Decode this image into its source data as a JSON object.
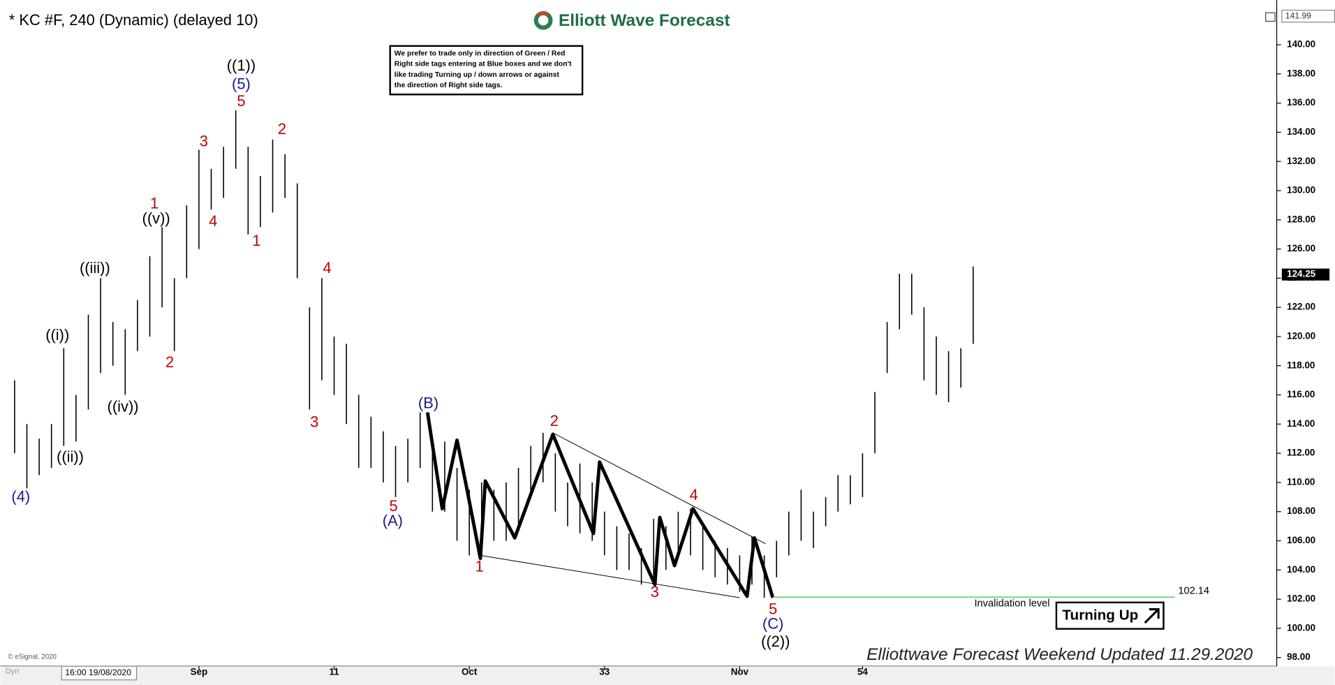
{
  "chart_data": {
    "type": "ohlc",
    "title": "* KC #F, 240 (Dynamic) (delayed 10)",
    "logo": "Elliott Wave Forecast",
    "note": [
      "We prefer to trade only in direction of Green / Red",
      "Right side tags entering at Blue boxes and we don't",
      "like trading Turning up / down arrows or against",
      "the direction of Right side tags."
    ],
    "footer": "Elliottwave Forecast Weekend Updated 11.29.2020",
    "badge": "Turning Up",
    "copyright": "© eSignal, 2020",
    "start_label": "16:00 19/08/2020",
    "corner_label": "Dyn",
    "top_price": "141.99",
    "last_price": {
      "value": 124.25,
      "label": "124.25"
    },
    "bar_color": "#000000",
    "x": [
      -15,
      -14,
      -13,
      -12,
      -11,
      -10,
      -9,
      -8,
      -7,
      -6,
      -5,
      -4,
      -3,
      -2,
      -1,
      0,
      1,
      2,
      3,
      4,
      5,
      6,
      7,
      8,
      9,
      10,
      11,
      12,
      13,
      14,
      15,
      16,
      17,
      18,
      19,
      20,
      21,
      22,
      23,
      24,
      25,
      26,
      27,
      28,
      29,
      30,
      31,
      32,
      33,
      34,
      35,
      36,
      37,
      38,
      39,
      40,
      41,
      42,
      43,
      44,
      45,
      46,
      47,
      48,
      49,
      50,
      51,
      52,
      53,
      54,
      55,
      56,
      57,
      58,
      59,
      60,
      61,
      62,
      63
    ],
    "low": [
      112,
      109.6,
      110.5,
      111,
      112.5,
      112.8,
      115,
      117.5,
      118,
      116,
      119,
      120,
      122,
      119,
      124,
      126,
      128.7,
      129.5,
      131.5,
      127,
      127.5,
      128.5,
      129.5,
      124,
      115,
      117,
      116,
      114,
      111,
      111,
      110,
      109,
      110,
      111,
      108,
      108,
      106,
      105,
      104.8,
      106,
      106,
      107,
      109,
      110,
      108,
      107,
      106.5,
      106,
      105,
      104,
      104,
      103,
      103,
      104,
      105,
      105,
      104,
      103.5,
      103,
      102.5,
      103,
      102.1,
      103.5,
      105,
      106,
      105.5,
      107,
      108,
      108.5,
      109,
      112,
      117.5,
      120.5,
      121.5,
      117,
      116,
      115.5,
      116.5,
      119.5
    ],
    "high": [
      117,
      114,
      113,
      114,
      119.2,
      116,
      121.5,
      124,
      121,
      120.5,
      122.5,
      125.5,
      127.5,
      124,
      129,
      132.8,
      131.5,
      133,
      135.5,
      133,
      131,
      133.5,
      132.5,
      130.5,
      122,
      124,
      120,
      119.5,
      116,
      114.5,
      113.5,
      112.5,
      113,
      114.8,
      113,
      112.8,
      111,
      109.5,
      110,
      109.5,
      110,
      111,
      112.5,
      113.4,
      112,
      110,
      111.3,
      110,
      108,
      107,
      106.5,
      105.5,
      107.5,
      107,
      108,
      108.2,
      107,
      106,
      105.5,
      105,
      106.3,
      105,
      106,
      108,
      109.5,
      108,
      109,
      110.5,
      110.5,
      112,
      116.2,
      121,
      124.3,
      124.3,
      122,
      120,
      119,
      119.2,
      124.8
    ],
    "wave": {
      "color": "#000000",
      "x": [
        18.6,
        19.8,
        21,
        21.7,
        22.9,
        23.3,
        25.7,
        28.8,
        32.1,
        32.6,
        37.1,
        37.5,
        38.7,
        40.2,
        44.6,
        45.2,
        46.7
      ],
      "y": [
        114.8,
        108.2,
        112.9,
        110,
        104.8,
        110.1,
        106.2,
        113.3,
        106.5,
        111.4,
        103,
        107.6,
        104.3,
        108.2,
        102.2,
        106.2,
        102.1
      ]
    },
    "trendlines": [
      {
        "color": "#000000",
        "x": [
          28.8,
          46.1
        ],
        "y": [
          113.4,
          105.8
        ]
      },
      {
        "color": "#000000",
        "x": [
          22.9,
          44.0
        ],
        "y": [
          105.0,
          102.1
        ]
      }
    ],
    "invalidation": {
      "value": 102.14,
      "label": "102.14",
      "text": "Invalidation level",
      "color": "#5cd65c",
      "x": [
        46.7,
        79.4
      ]
    },
    "annotations": [
      {
        "text": "((1))",
        "color": "#000000"
      },
      {
        "text": "(5)",
        "color": "#1a1a8c"
      },
      {
        "text": "5",
        "color": "#c00000"
      },
      {
        "text": "2",
        "color": "#c00000"
      },
      {
        "text": "3",
        "color": "#c00000"
      },
      {
        "text": "4",
        "color": "#c00000"
      },
      {
        "text": "1",
        "color": "#c00000"
      },
      {
        "text": "((v))",
        "color": "#000000"
      },
      {
        "text": "1",
        "color": "#c00000"
      },
      {
        "text": "((iii))",
        "color": "#000000"
      },
      {
        "text": "((i))",
        "color": "#000000"
      },
      {
        "text": "2",
        "color": "#c00000"
      },
      {
        "text": "((iv))",
        "color": "#000000"
      },
      {
        "text": "((ii))",
        "color": "#000000"
      },
      {
        "text": "(4)",
        "color": "#1a1a8c"
      },
      {
        "text": "4",
        "color": "#c00000"
      },
      {
        "text": "3",
        "color": "#c00000"
      },
      {
        "text": "5",
        "color": "#c00000"
      },
      {
        "text": "(A)",
        "color": "#1a1a8c"
      },
      {
        "text": "(B)",
        "color": "#1a1a8c"
      },
      {
        "text": "2",
        "color": "#c00000"
      },
      {
        "text": "1",
        "color": "#c00000"
      },
      {
        "text": "3",
        "color": "#c00000"
      },
      {
        "text": "4",
        "color": "#c00000"
      },
      {
        "text": "5",
        "color": "#c00000"
      },
      {
        "text": "(C)",
        "color": "#1a1a8c"
      },
      {
        "text": "((2))",
        "color": "#000000"
      }
    ],
    "xlim": [
      -15.6,
      87.7
    ],
    "xticks": [
      {
        "value": 0,
        "label": "Sep"
      },
      11,
      {
        "value": 22,
        "label": "Oct"
      },
      33,
      {
        "value": 44,
        "label": "Nov"
      },
      54
    ],
    "ylim": [
      97.4,
      142.6
    ],
    "yticks": [
      {
        "value": 98,
        "label": "98.00"
      },
      {
        "value": 100,
        "label": "100.00"
      },
      {
        "value": 102,
        "label": "102.00"
      },
      {
        "value": 104,
        "label": "104.00"
      },
      {
        "value": 106,
        "label": "106.00"
      },
      {
        "value": 108,
        "label": "108.00"
      },
      {
        "value": 110,
        "label": "110.00"
      },
      {
        "value": 112,
        "label": "112.00"
      },
      {
        "value": 114,
        "label": "114.00"
      },
      {
        "value": 116,
        "label": "116.00"
      },
      {
        "value": 118,
        "label": "118.00"
      },
      {
        "value": 120,
        "label": "120.00"
      },
      {
        "value": 122,
        "label": "122.00"
      },
      {
        "value": 124,
        "label": "124.00"
      },
      {
        "value": 126,
        "label": "126.00"
      },
      {
        "value": 128,
        "label": "128.00"
      },
      {
        "value": 130,
        "label": "130.00"
      },
      {
        "value": 132,
        "label": "132.00"
      },
      {
        "value": 134,
        "label": "134.00"
      },
      {
        "value": 136,
        "label": "136.00"
      },
      {
        "value": 138,
        "label": "138.00"
      },
      {
        "value": 140,
        "label": "140.00"
      }
    ],
    "grid": false
  }
}
